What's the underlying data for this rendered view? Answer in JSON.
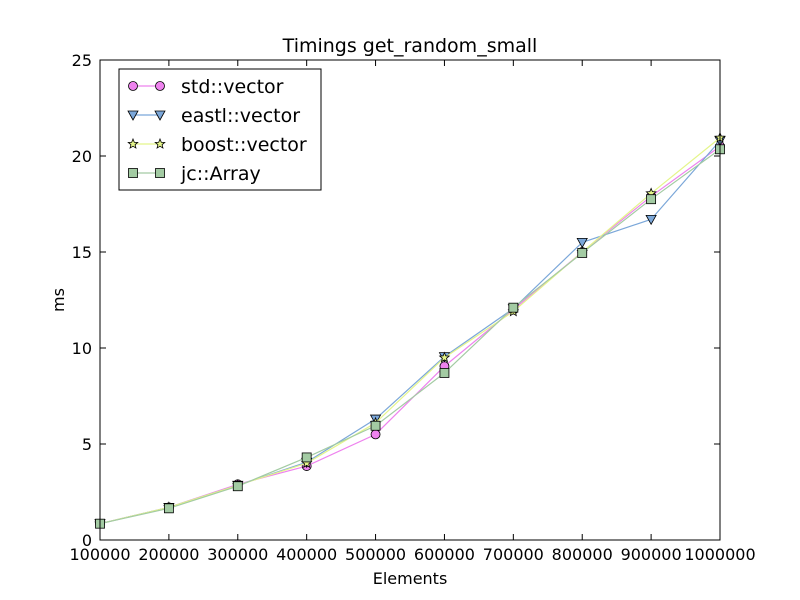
{
  "chart_data": {
    "type": "line",
    "title": "Timings get_random_small",
    "xlabel": "Elements",
    "ylabel": "ms",
    "xlim": [
      100000,
      1000000
    ],
    "ylim": [
      0,
      25
    ],
    "xticks": [
      100000,
      200000,
      300000,
      400000,
      500000,
      600000,
      700000,
      800000,
      900000,
      1000000
    ],
    "yticks": [
      0,
      5,
      10,
      15,
      20,
      25
    ],
    "grid": false,
    "legend": "top-left",
    "x": [
      100000,
      200000,
      300000,
      400000,
      500000,
      600000,
      700000,
      800000,
      900000,
      1000000
    ],
    "series": [
      {
        "name": "std::vector",
        "marker": "circle",
        "color": "#ee82ee",
        "values": [
          0.85,
          1.7,
          2.9,
          3.85,
          5.5,
          9.05,
          12.0,
          15.0,
          17.9,
          20.5
        ]
      },
      {
        "name": "eastl::vector",
        "marker": "triangle",
        "color": "#7ba7d9",
        "values": [
          0.85,
          1.7,
          2.85,
          4.05,
          6.3,
          9.55,
          12.05,
          15.5,
          16.7,
          20.8
        ]
      },
      {
        "name": "boost::vector",
        "marker": "star",
        "color": "#e4f58a",
        "values": [
          0.85,
          1.7,
          2.85,
          4.0,
          6.1,
          9.5,
          11.9,
          15.0,
          18.05,
          20.95
        ]
      },
      {
        "name": "jc::Array",
        "marker": "square",
        "color": "#a3cba3",
        "values": [
          0.85,
          1.65,
          2.8,
          4.3,
          5.95,
          8.7,
          12.1,
          14.95,
          17.75,
          20.35
        ]
      }
    ]
  }
}
